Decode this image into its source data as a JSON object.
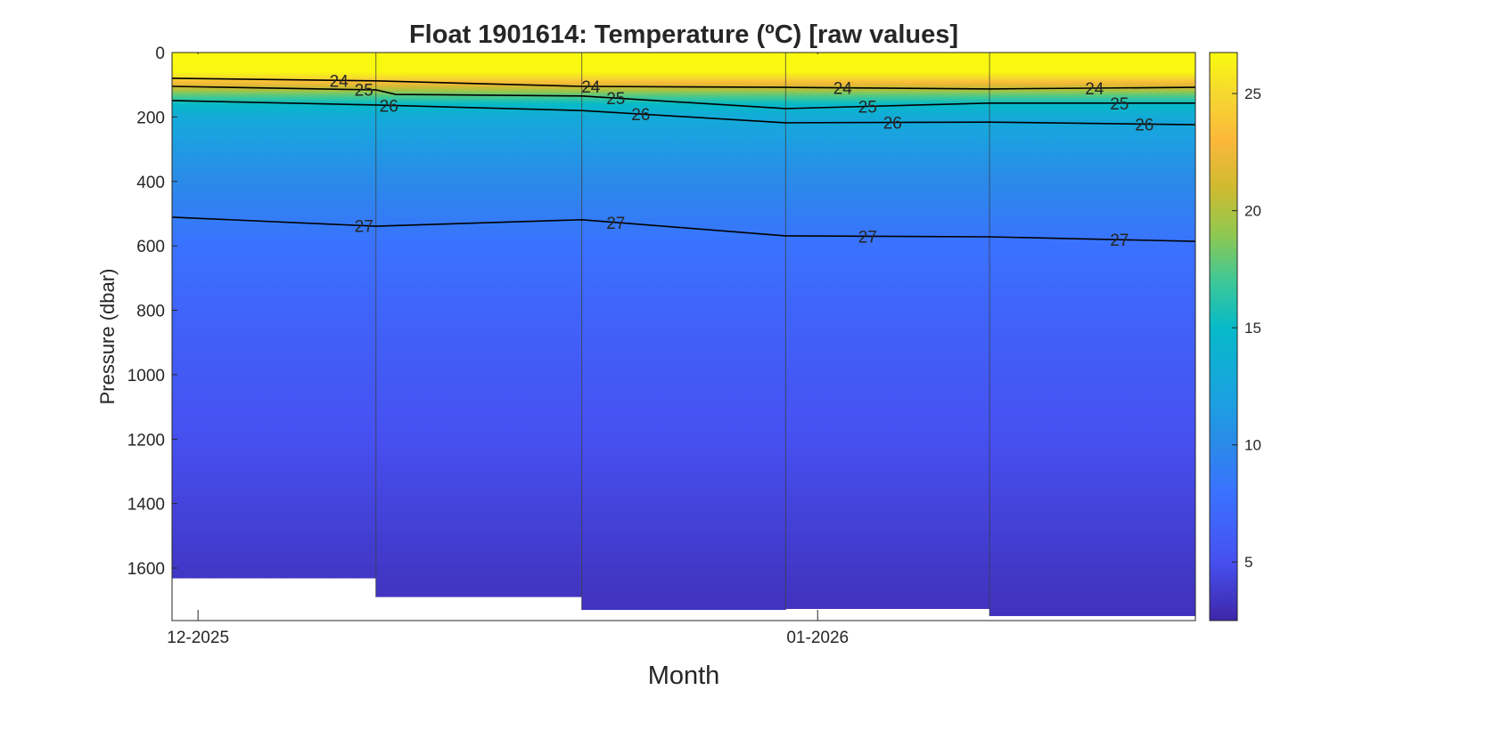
{
  "chart_data": {
    "type": "heatmap",
    "title": "Float  1901614:  Temperature  (ºC)  [raw  values]",
    "xlabel": "Month",
    "ylabel": "Pressure (dbar)",
    "x_unit": "days since 2025-12-01",
    "xlim": [
      -1.3,
      49.9
    ],
    "x_ticks": [
      {
        "value": 0,
        "label": "12-2025"
      },
      {
        "value": 31,
        "label": "01-2026"
      }
    ],
    "ylim": [
      0,
      1763
    ],
    "y_reversed": true,
    "y_ticks": [
      0,
      200,
      400,
      600,
      800,
      1000,
      1200,
      1400,
      1600
    ],
    "profile_edges": [
      -1.3,
      8.9,
      19.2,
      29.4,
      39.6,
      49.9
    ],
    "profile_max_pressure": [
      1632,
      1690,
      1730,
      1727,
      1749
    ],
    "temperature_profile": {
      "pressure": [
        0,
        60,
        80,
        100,
        130,
        160,
        200,
        300,
        400,
        500,
        600,
        800,
        1000,
        1200,
        1400,
        1600,
        1763
      ],
      "temperature": [
        26.7,
        26.6,
        25.0,
        22.0,
        18.0,
        15.0,
        13.0,
        11.3,
        10.0,
        9.0,
        8.0,
        6.8,
        5.8,
        5.0,
        4.3,
        3.6,
        3.2
      ]
    },
    "colorbar": {
      "range": [
        2.5,
        26.75
      ],
      "ticks": [
        5,
        10,
        15,
        20,
        25
      ]
    },
    "contours": [
      {
        "level": "24",
        "x": [
          -1.3,
          8.9,
          19.2,
          29.4,
          39.6,
          49.9
        ],
        "pressure": [
          80,
          88,
          105,
          108,
          113,
          108
        ],
        "label_x": [
          8.3,
          20.9,
          33.5,
          46.1
        ]
      },
      {
        "level": "25",
        "x": [
          -1.3,
          8.9,
          9.9,
          19.2,
          29.4,
          39.6,
          49.9
        ],
        "pressure": [
          105,
          116,
          130,
          135,
          174,
          157,
          157
        ],
        "label_x": [
          8.3,
          20.9,
          33.5,
          46.1
        ]
      },
      {
        "level": "26",
        "x": [
          -1.3,
          8.9,
          19.2,
          29.4,
          39.6,
          49.9
        ],
        "pressure": [
          149,
          163,
          180,
          218,
          216,
          224
        ],
        "label_x": [
          8.3,
          20.9,
          33.5,
          46.1
        ]
      },
      {
        "level": "27",
        "x": [
          -1.3,
          8.9,
          19.2,
          29.4,
          39.6,
          49.9
        ],
        "pressure": [
          511,
          539,
          519,
          569,
          572,
          586
        ],
        "label_x": [
          8.3,
          20.9,
          33.5,
          46.1
        ]
      }
    ]
  }
}
